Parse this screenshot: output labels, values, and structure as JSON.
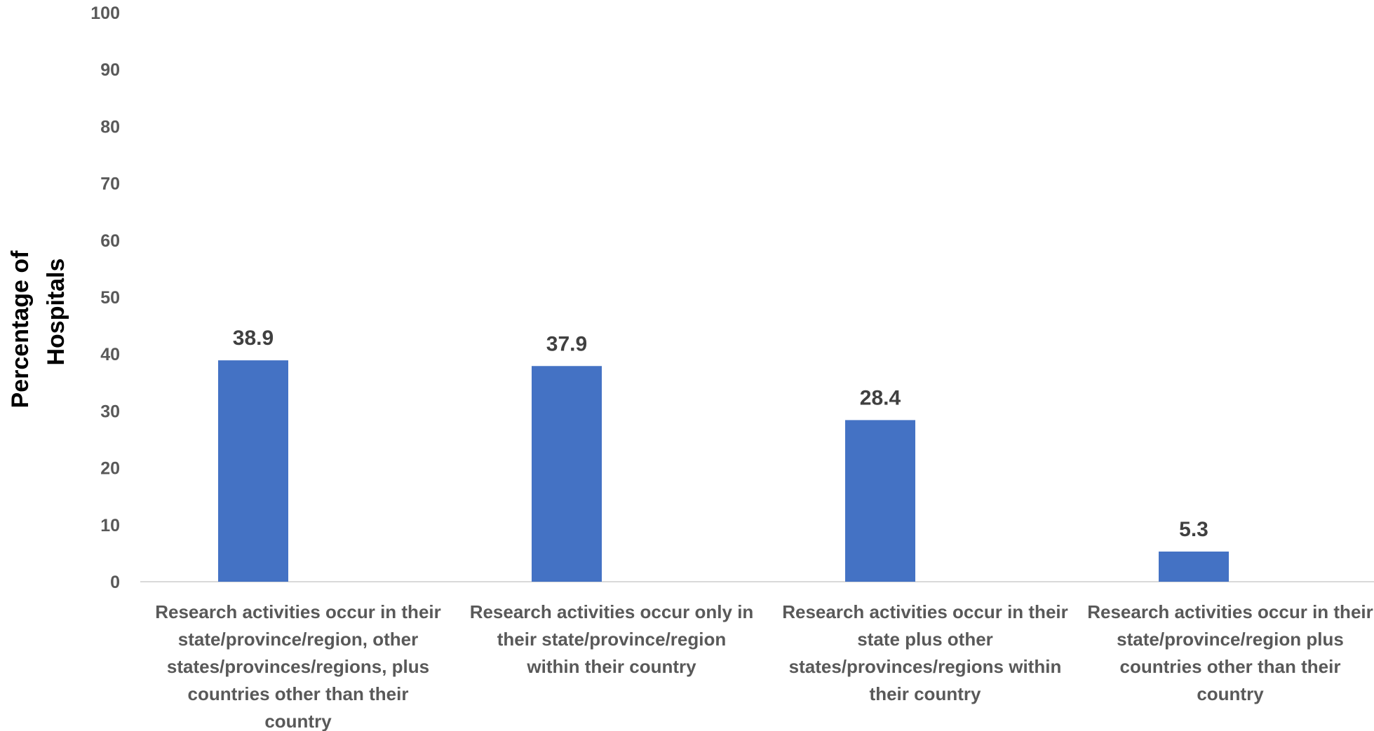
{
  "chart_data": {
    "type": "bar",
    "title": "",
    "xlabel": "",
    "ylabel_lines": [
      "Percentage of",
      "Hospitals"
    ],
    "ylim": [
      0,
      100
    ],
    "yticks": [
      0,
      10,
      20,
      30,
      40,
      50,
      60,
      70,
      80,
      90,
      100
    ],
    "grid": false,
    "legend": "none",
    "bar_color": "#4472C4",
    "categories": [
      [
        "Research activities occur in their",
        "state/province/region, other",
        "states/provinces/regions, plus",
        "countries other than their",
        "country"
      ],
      [
        "Research activities occur only in",
        "their state/province/region",
        "within their country"
      ],
      [
        "Research activities occur in their",
        "state plus other",
        "states/provinces/regions within",
        "their country"
      ],
      [
        "Research activities occur in their",
        "state/province/region plus",
        "countries other than their",
        "country"
      ]
    ],
    "values": [
      38.9,
      37.9,
      28.4,
      5.3
    ],
    "data_labels": [
      "38.9",
      "37.9",
      "28.4",
      "5.3"
    ]
  }
}
